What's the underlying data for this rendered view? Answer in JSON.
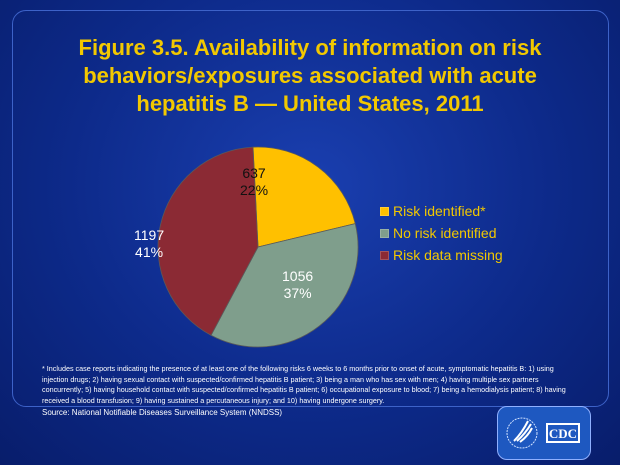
{
  "chart_data": {
    "type": "pie",
    "title": "Figure 3.5. Availability of information on risk behaviors/exposures associated with acute hepatitis B — United States, 2011",
    "slices": [
      {
        "name": "Risk identified*",
        "value": 637,
        "percent": "22%",
        "color": "#ffc000"
      },
      {
        "name": "No risk identified",
        "value": 1056,
        "percent": "37%",
        "color": "#7f9e8c"
      },
      {
        "name": "Risk data missing",
        "value": 1197,
        "percent": "41%",
        "color": "#8b2a34"
      }
    ],
    "legend_position": "right"
  },
  "footnote": "* Includes case reports indicating the presence of at least one of the following risks 6 weeks to 6 months prior to onset of acute, symptomatic hepatitis B: 1) using injection drugs; 2) having sexual contact with suspected/confirmed hepatitis B patient; 3) being a man who has sex with men; 4) having multiple sex partners concurrently; 5) having household contact with suspected/confirmed hepatitis B patient; 6) occupational exposure to blood; 7) being a hemodialysis patient; 8) having received a blood transfusion; 9) having sustained a percutaneous injury; and 10) having undergone surgery.",
  "source": "Source: National  Notifiable  Diseases  Surveillance System (NNDSS)",
  "logo": {
    "text": "CDC"
  }
}
